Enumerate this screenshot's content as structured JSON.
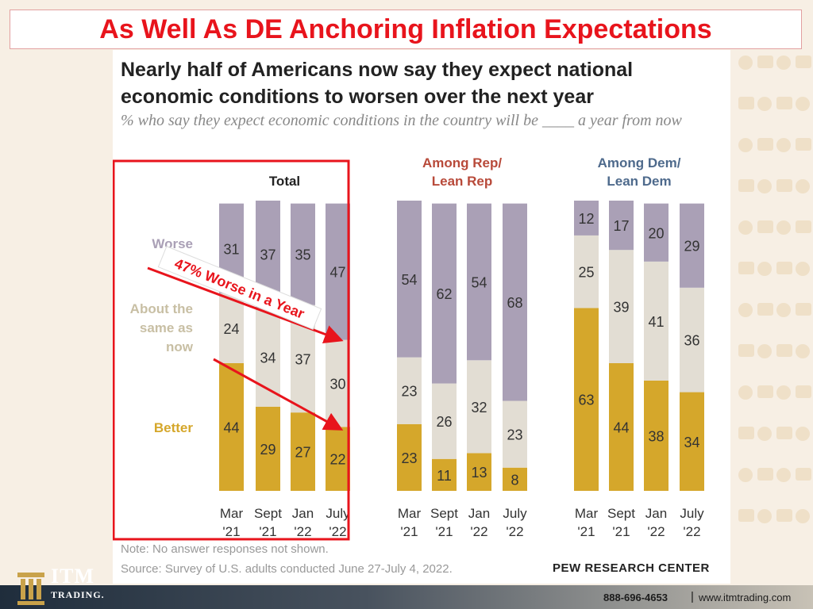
{
  "slide_title": "As Well As DE Anchoring Inflation Expectations",
  "chart_heading": "Nearly half of Americans now say they expect national economic conditions to worsen over the next year",
  "chart_subtitle": "% who say they expect economic conditions in the country will be ____ a year from now",
  "note": "Note: No answer responses not shown.",
  "source": "Source: Survey of U.S. adults conducted June 27-July 4, 2022.",
  "publisher": "PEW RESEARCH CENTER",
  "callout": "47% Worse in a Year",
  "footer": {
    "phone": "888-696-4653",
    "separator": "|",
    "website": "www.itmtrading.com"
  },
  "logo": {
    "name": "ITM",
    "sub": "TRADING."
  },
  "colors": {
    "worse": "#aaa0b6",
    "same": "#e2ddd3",
    "better": "#d5a72b",
    "rep_title": "#b84a3a",
    "dem_title": "#4e6a8c",
    "title_red": "#e8141c"
  },
  "chart_data": {
    "type": "bar",
    "stacked": true,
    "categories": [
      "Mar '21",
      "Sept '21",
      "Jan '22",
      "July '22"
    ],
    "legend": [
      "Worse",
      "About the same as now",
      "Better"
    ],
    "panels": [
      {
        "title": "Total",
        "series": [
          {
            "name": "Better",
            "values": [
              44,
              29,
              27,
              22
            ]
          },
          {
            "name": "About the same as now",
            "values": [
              24,
              34,
              37,
              30
            ]
          },
          {
            "name": "Worse",
            "values": [
              31,
              37,
              35,
              47
            ]
          }
        ]
      },
      {
        "title": "Among Rep/ Lean Rep",
        "series": [
          {
            "name": "Better",
            "values": [
              23,
              11,
              13,
              8
            ]
          },
          {
            "name": "About the same as now",
            "values": [
              23,
              26,
              32,
              23
            ]
          },
          {
            "name": "Worse",
            "values": [
              54,
              62,
              54,
              68
            ]
          }
        ]
      },
      {
        "title": "Among Dem/ Lean Dem",
        "series": [
          {
            "name": "Better",
            "values": [
              63,
              44,
              38,
              34
            ]
          },
          {
            "name": "About the same as now",
            "values": [
              25,
              39,
              41,
              36
            ]
          },
          {
            "name": "Worse",
            "values": [
              12,
              17,
              20,
              29
            ]
          }
        ]
      }
    ]
  }
}
